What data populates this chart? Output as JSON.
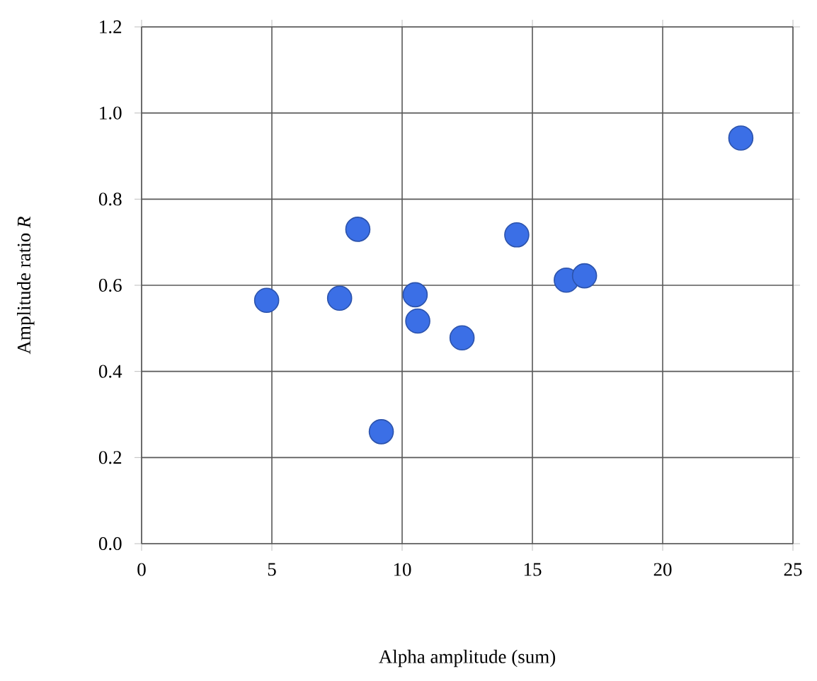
{
  "chart_data": {
    "type": "scatter",
    "xlabel": "Alpha amplitude (sum)",
    "ylabel": "Amplitude ratio *R*",
    "x": [
      4.8,
      7.6,
      8.3,
      9.2,
      10.5,
      10.6,
      12.3,
      14.4,
      16.3,
      17.0,
      23.0
    ],
    "series": [
      {
        "color": "#3b6fe6",
        "values": [
          0.565,
          0.57,
          0.73,
          0.26,
          0.578,
          0.517,
          0.478,
          0.717,
          0.612,
          0.622,
          0.942
        ]
      }
    ],
    "xlim": [
      0,
      25
    ],
    "xticks": [
      0,
      5,
      10,
      15,
      20,
      25
    ],
    "ylim": [
      0,
      1.2
    ],
    "yticks": [
      {
        "value": 0,
        "label": "0.0"
      },
      {
        "value": 0.2,
        "label": "0.2"
      },
      {
        "value": 0.4,
        "label": "0.4"
      },
      {
        "value": 0.6,
        "label": "0.6"
      },
      {
        "value": 0.8,
        "label": "0.8"
      },
      {
        "value": 1.0,
        "label": "1.0"
      },
      {
        "value": 1.2,
        "label": "1.2"
      }
    ],
    "grid": true
  }
}
